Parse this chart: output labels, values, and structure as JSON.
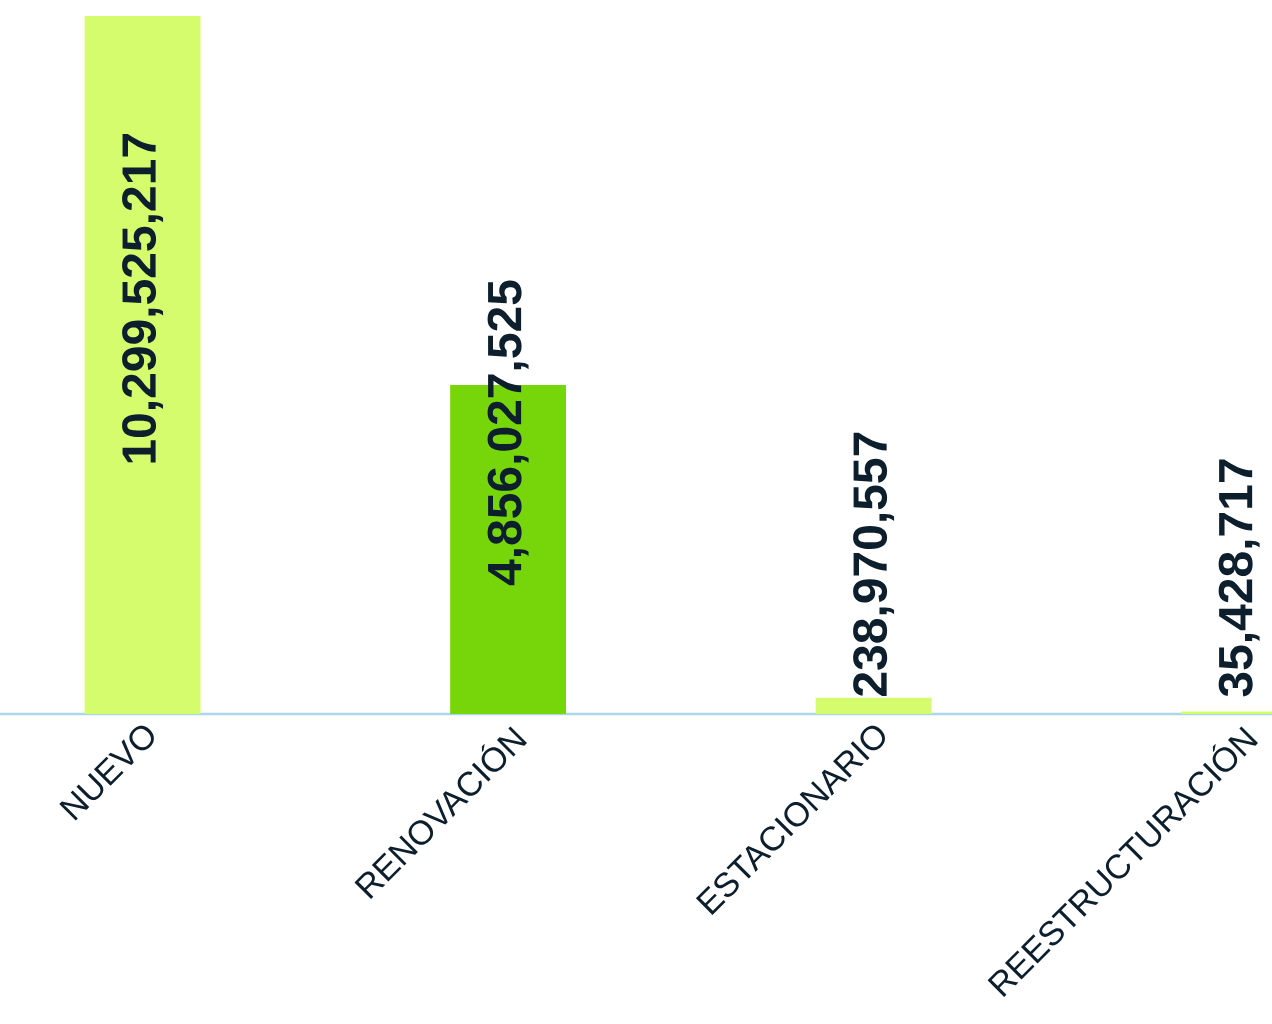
{
  "chart_data": {
    "type": "bar",
    "categories": [
      "NUEVO",
      "RENOVACIÓN",
      "ESTACIONARIO",
      "REESTRUCTURACIÓN"
    ],
    "values": [
      10299525217,
      4856027525,
      238970557,
      35428717
    ],
    "value_labels": [
      "10,299,525,217",
      "4,856,027,525",
      "238,970,557",
      "35,428,717"
    ],
    "colors": [
      "#d4fc6c",
      "#77d60a",
      "#d4fc6c",
      "#d4fc6c"
    ]
  }
}
